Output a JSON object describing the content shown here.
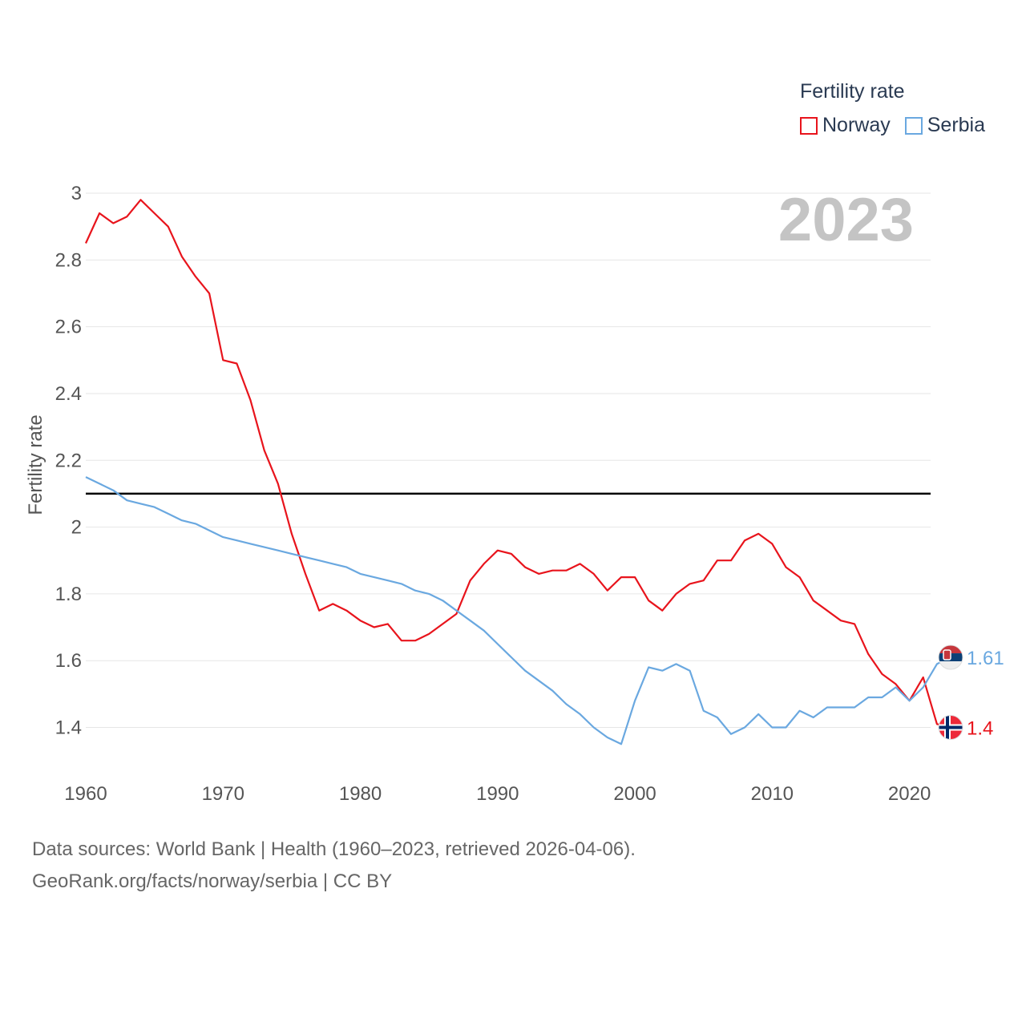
{
  "chart_data": {
    "type": "line",
    "ylabel": "Fertility rate",
    "legend_title": "Fertility rate",
    "legend_position": "top-right",
    "year_label": "2023",
    "ylim": [
      1.25,
      3.0
    ],
    "xlim": [
      1960,
      2023
    ],
    "y_ticks": [
      "1.4",
      "1.6",
      "1.8",
      "2",
      "2.2",
      "2.4",
      "2.6",
      "2.8",
      "3"
    ],
    "x_ticks": [
      "1960",
      "1970",
      "1980",
      "1990",
      "2000",
      "2010",
      "2020"
    ],
    "reference_line": 2.1,
    "x": [
      1960,
      1961,
      1962,
      1963,
      1964,
      1965,
      1966,
      1967,
      1968,
      1969,
      1970,
      1971,
      1972,
      1973,
      1974,
      1975,
      1976,
      1977,
      1978,
      1979,
      1980,
      1981,
      1982,
      1983,
      1984,
      1985,
      1986,
      1987,
      1988,
      1989,
      1990,
      1991,
      1992,
      1993,
      1994,
      1995,
      1996,
      1997,
      1998,
      1999,
      2000,
      2001,
      2002,
      2003,
      2004,
      2005,
      2006,
      2007,
      2008,
      2009,
      2010,
      2011,
      2012,
      2013,
      2014,
      2015,
      2016,
      2017,
      2018,
      2019,
      2020,
      2021,
      2022,
      2023
    ],
    "series": [
      {
        "name": "Norway",
        "color": "#e8141c",
        "end_label": "1.4",
        "values": [
          2.85,
          2.94,
          2.91,
          2.93,
          2.98,
          2.94,
          2.9,
          2.81,
          2.75,
          2.7,
          2.5,
          2.49,
          2.38,
          2.23,
          2.13,
          1.98,
          1.86,
          1.75,
          1.77,
          1.75,
          1.72,
          1.7,
          1.71,
          1.66,
          1.66,
          1.68,
          1.71,
          1.74,
          1.84,
          1.89,
          1.93,
          1.92,
          1.88,
          1.86,
          1.87,
          1.87,
          1.89,
          1.86,
          1.81,
          1.85,
          1.85,
          1.78,
          1.75,
          1.8,
          1.83,
          1.84,
          1.9,
          1.9,
          1.96,
          1.98,
          1.95,
          1.88,
          1.85,
          1.78,
          1.75,
          1.72,
          1.71,
          1.62,
          1.56,
          1.53,
          1.48,
          1.55,
          1.41,
          1.4
        ]
      },
      {
        "name": "Serbia",
        "color": "#6aa8e0",
        "end_label": "1.61",
        "values": [
          2.15,
          2.13,
          2.11,
          2.08,
          2.07,
          2.06,
          2.04,
          2.02,
          2.01,
          1.99,
          1.97,
          1.96,
          1.95,
          1.94,
          1.93,
          1.92,
          1.91,
          1.9,
          1.89,
          1.88,
          1.86,
          1.85,
          1.84,
          1.83,
          1.81,
          1.8,
          1.78,
          1.75,
          1.72,
          1.69,
          1.65,
          1.61,
          1.57,
          1.54,
          1.51,
          1.47,
          1.44,
          1.4,
          1.37,
          1.35,
          1.48,
          1.58,
          1.57,
          1.59,
          1.57,
          1.45,
          1.43,
          1.38,
          1.4,
          1.44,
          1.4,
          1.4,
          1.45,
          1.43,
          1.46,
          1.46,
          1.46,
          1.49,
          1.49,
          1.52,
          1.48,
          1.52,
          1.59,
          1.61
        ]
      }
    ]
  },
  "footer": {
    "line1": "Data sources: World Bank | Health (1960–2023, retrieved 2026-04-06).",
    "line2": "GeoRank.org/facts/norway/serbia | CC BY"
  }
}
